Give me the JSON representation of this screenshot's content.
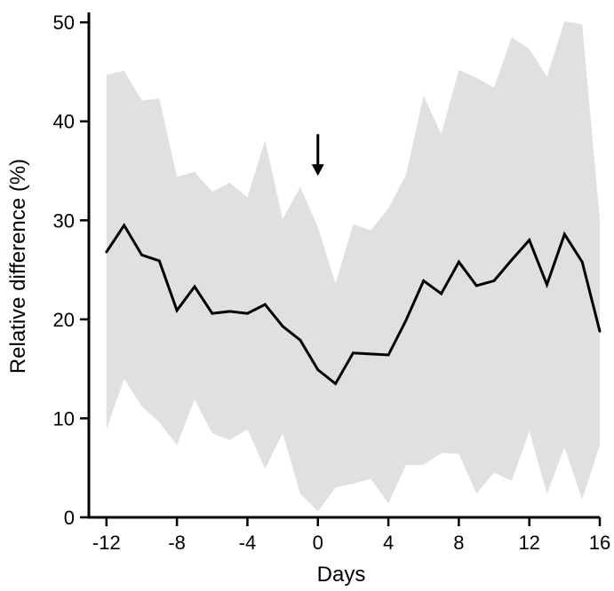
{
  "chart_data": {
    "type": "line",
    "title": "",
    "xlabel": "Days",
    "ylabel": "Relative difference (%)",
    "xlim": [
      -13,
      16
    ],
    "ylim": [
      0,
      51
    ],
    "xticks": [
      -12,
      -8,
      -4,
      0,
      4,
      8,
      12,
      16
    ],
    "xtick_labels": [
      "-12",
      "-8",
      "-4",
      "0",
      "4",
      "8",
      "12",
      "16"
    ],
    "yticks": [
      0,
      10,
      20,
      30,
      40,
      50
    ],
    "ytick_labels": [
      "0",
      "10",
      "20",
      "30",
      "40",
      "50"
    ],
    "grid": false,
    "legend": "none",
    "x": [
      -12,
      -11,
      -10,
      -9,
      -8,
      -7,
      -6,
      -5,
      -4,
      -3,
      -2,
      -1,
      0,
      1,
      2,
      3,
      4,
      5,
      6,
      7,
      8,
      9,
      10,
      11,
      12,
      13,
      14,
      15,
      16
    ],
    "series": [
      {
        "values": [
          26.8,
          29.5,
          26.5,
          25.9,
          20.9,
          23.3,
          20.6,
          20.8,
          20.6,
          21.5,
          19.3,
          17.9,
          14.9,
          13.5,
          16.6,
          16.5,
          16.4,
          19.9,
          23.9,
          22.6,
          25.8,
          23.4,
          23.9,
          26.0,
          28.0,
          23.5,
          28.6,
          25.8,
          18.8
        ]
      }
    ],
    "band": {
      "upper": [
        44.7,
        45.1,
        42.1,
        42.3,
        34.4,
        34.9,
        32.9,
        33.8,
        32.3,
        38.1,
        30.1,
        33.4,
        29.3,
        23.6,
        29.6,
        29.0,
        31.2,
        34.6,
        42.6,
        38.7,
        45.2,
        44.4,
        43.4,
        48.5,
        47.3,
        44.5,
        50.1,
        49.8,
        30.0
      ],
      "lower": [
        8.9,
        14.0,
        11.2,
        9.6,
        7.3,
        11.9,
        8.5,
        7.8,
        8.9,
        4.9,
        8.5,
        2.4,
        0.6,
        3.0,
        3.4,
        3.9,
        1.4,
        5.3,
        5.3,
        6.5,
        6.4,
        2.4,
        4.5,
        3.7,
        8.7,
        2.4,
        7.1,
        1.8,
        7.3
      ]
    },
    "annotation": {
      "type": "arrow-down",
      "x": 0,
      "y_top": 38.7,
      "y_bottom": 34.5
    },
    "colors": {
      "line": "#000000",
      "band": "#e0e0e0",
      "axis": "#000000"
    }
  }
}
